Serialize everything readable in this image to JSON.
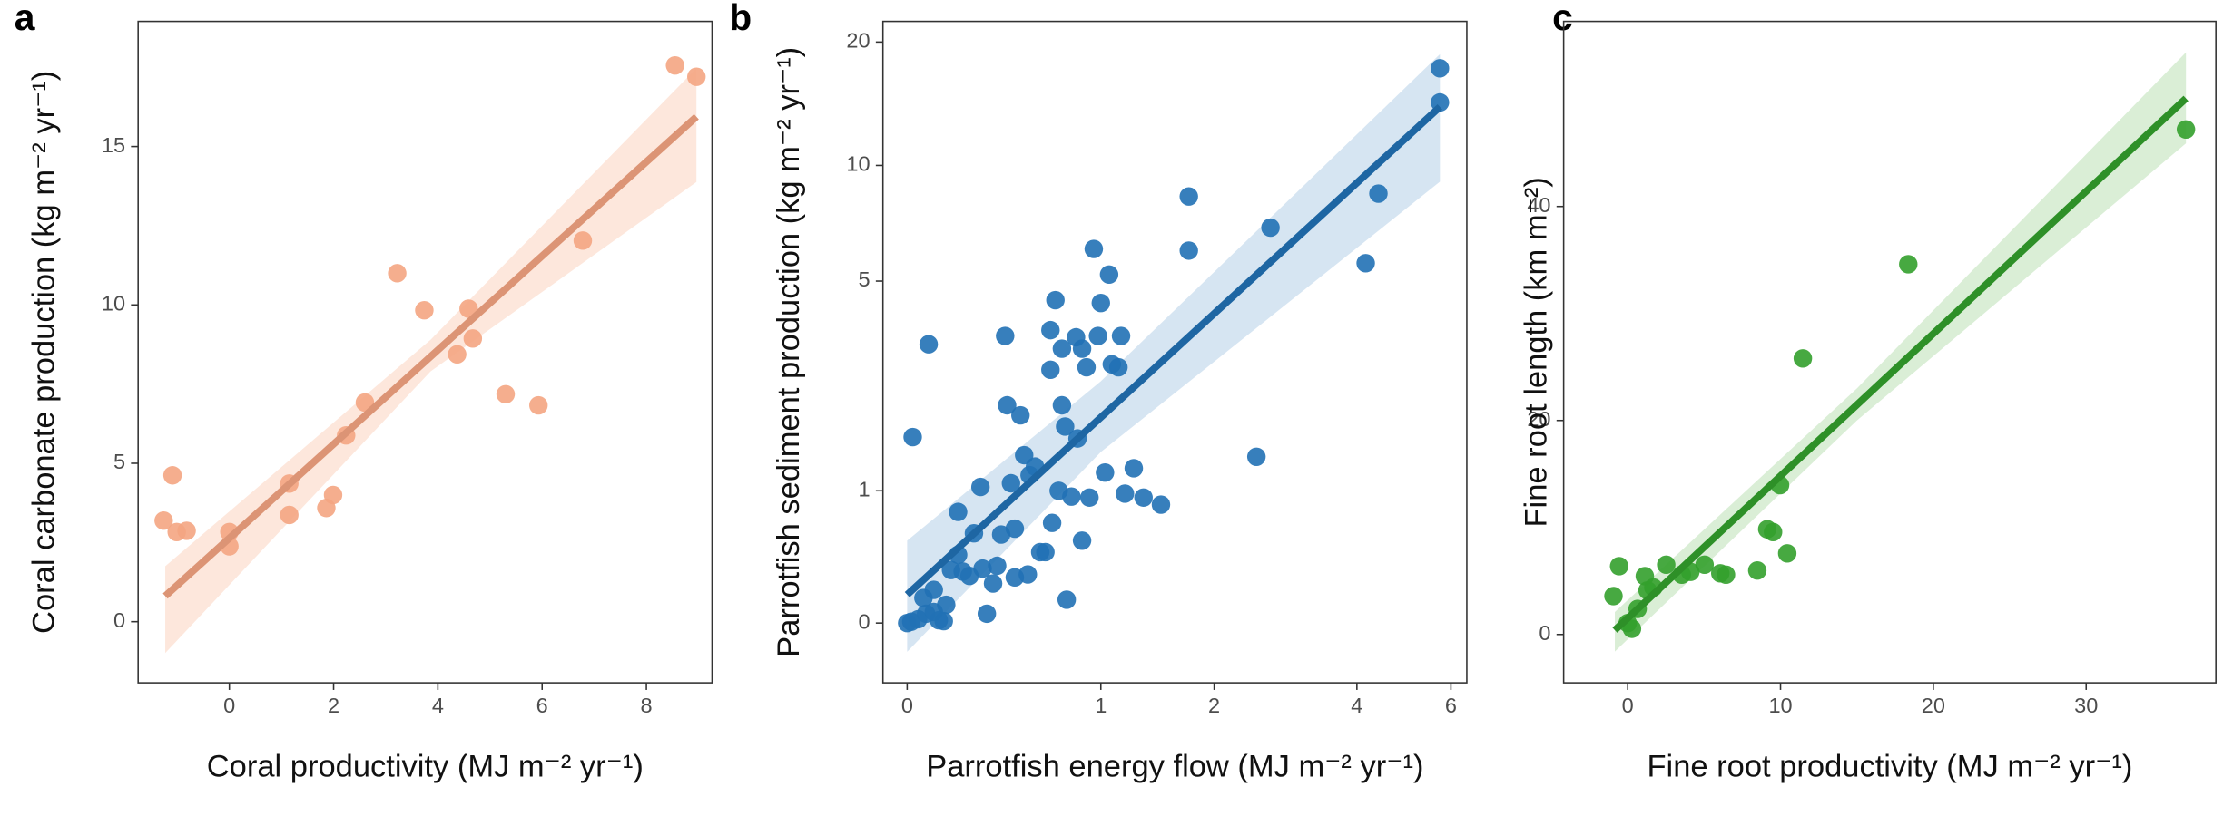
{
  "chart_data": [
    {
      "type": "scatter",
      "title": "a",
      "x_label": "Coral productivity (MJ m⁻² yr⁻¹)",
      "y_label": "Coral carbonate production (kg m⁻² yr⁻¹)",
      "color": "#f4a582",
      "band_color": "#fde3d6",
      "x": [
        -1.26,
        -1.09,
        -1.01,
        -0.82,
        0,
        0,
        1.15,
        1.15,
        1.86,
        1.99,
        2.24,
        2.6,
        3.22,
        3.74,
        4.37,
        4.59,
        4.67,
        5.3,
        5.93,
        6.78,
        8.55,
        8.96
      ],
      "y": [
        3.19,
        4.62,
        2.83,
        2.87,
        2.83,
        2.38,
        4.36,
        3.37,
        3.59,
        4.0,
        5.88,
        6.92,
        11.0,
        9.83,
        8.44,
        9.88,
        8.94,
        7.18,
        6.83,
        12.03,
        17.56,
        17.2
      ],
      "fit": {
        "x": [
          -1.23,
          8.96
        ],
        "y": [
          0.81,
          15.94
        ]
      },
      "band": {
        "x": [
          -1.23,
          3.86,
          8.96
        ],
        "lower": [
          -0.99,
          7.9,
          13.88
        ],
        "upper": [
          1.75,
          8.9,
          17.47
        ]
      },
      "xlim": [
        -1.75,
        9.26
      ],
      "ylim": [
        -1.93,
        18.95
      ],
      "xticks": [
        0,
        2,
        4,
        6,
        8
      ],
      "yticks": [
        0,
        5,
        10,
        15
      ]
    },
    {
      "type": "scatter",
      "title": "b",
      "x_label": "Parrotfish energy flow (MJ m⁻² yr⁻¹)",
      "y_label": "Parrotfish sediment production (kg m⁻² yr⁻¹)",
      "color": "#2171b5",
      "band_color": "#cfe0f0",
      "xscale": "log1p",
      "yscale": "log1p",
      "x": [
        0.02,
        0.08,
        0,
        0.015,
        0.04,
        0.07,
        0.1,
        0.12,
        0.06,
        0.1,
        0.14,
        0.15,
        0.2,
        0.2,
        0.25,
        0.27,
        0.3,
        0.31,
        0.33,
        0.36,
        0.38,
        0.42,
        0.43,
        0.45,
        0.47,
        0.5,
        0.52,
        0.54,
        0.55,
        0.58,
        0.61,
        0.64,
        0.67,
        0.67,
        0.7,
        0.72,
        0.74,
        0.76,
        0.77,
        0.8,
        0.83,
        0.84,
        0.87,
        0.9,
        0.92,
        0.95,
        0.98,
        1.0,
        1.03,
        1.06,
        1.08,
        1.13,
        1.15,
        1.18,
        1.25,
        1.33,
        1.48,
        1.74,
        1.74,
        2.67,
        2.49,
        4.16,
        4.4,
        5.73,
        5.73,
        0.4,
        0.47,
        0.68,
        0.87,
        0.74,
        0.17,
        0.22
      ],
      "y": [
        1.65,
        3.31,
        0,
        0.007,
        0.02,
        0.05,
        0.06,
        0.015,
        0.14,
        0.19,
        0.01,
        0.1,
        0.43,
        0.79,
        0.28,
        0.6,
        1.04,
        0.33,
        0.05,
        0.23,
        0.35,
        3.5,
        2.13,
        1.08,
        0.64,
        1.97,
        1.41,
        0.29,
        1.17,
        1.27,
        0.45,
        0.45,
        3.64,
        2.77,
        4.43,
        1.0,
        3.21,
        1.8,
        0.13,
        0.94,
        3.47,
        1.63,
        0.54,
        2.82,
        0.93,
        6.1,
        3.5,
        4.35,
        1.2,
        5.21,
        2.88,
        2.82,
        3.5,
        0.97,
        1.25,
        0.93,
        0.86,
        8.35,
        6.04,
        6.94,
        1.39,
        5.59,
        8.49,
        17.3,
        14.3,
        0.59,
        0.27,
        0.69,
        3.21,
        2.13,
        0.32,
        0.31
      ],
      "fit": {
        "x": [
          0,
          5.73
        ],
        "y": [
          0.16,
          13.95
        ]
      },
      "band": {
        "x": [
          0,
          1,
          5.73
        ],
        "lower": [
          -0.14,
          1.45,
          9.1
        ],
        "upper": [
          0.54,
          2.55,
          18.7
        ]
      },
      "xlim": [
        -0.083,
        6.41
      ],
      "ylim": [
        -0.269,
        22.4
      ],
      "xticks": [
        0,
        1,
        2,
        4,
        6
      ],
      "yticks": [
        0,
        1,
        5,
        10,
        20
      ]
    },
    {
      "type": "scatter",
      "title": "c",
      "x_label": "Fine root productivity (MJ m⁻² yr⁻¹)",
      "y_label": "Fine root length (km m⁻²)",
      "color": "#33a02c",
      "band_color": "#d3ebcf",
      "x": [
        -0.93,
        -0.56,
        0,
        0.28,
        0.65,
        1.12,
        1.3,
        1.68,
        2.52,
        3.54,
        4.1,
        5.03,
        6.06,
        6.43,
        8.48,
        9.13,
        9.51,
        9.97,
        10.44,
        11.46,
        18.36,
        36.53
      ],
      "y": [
        3.59,
        6.38,
        1.06,
        0.53,
        2.39,
        5.45,
        4.12,
        4.39,
        6.52,
        5.59,
        5.85,
        6.52,
        5.72,
        5.59,
        5.98,
        9.84,
        9.57,
        13.96,
        7.58,
        25.8,
        34.6,
        47.2
      ],
      "fit": {
        "x": [
          -0.84,
          36.53
        ],
        "y": [
          0.4,
          50.1
        ]
      },
      "band": {
        "x": [
          -0.84,
          15,
          36.53
        ],
        "lower": [
          -1.6,
          20.0,
          45.9
        ],
        "upper": [
          2.1,
          23.0,
          54.4
        ]
      },
      "xlim": [
        -4.19,
        38.49
      ],
      "ylim": [
        -4.52,
        57.3
      ],
      "xticks": [
        0,
        10,
        20,
        30
      ],
      "yticks": [
        0,
        20,
        40
      ]
    }
  ]
}
